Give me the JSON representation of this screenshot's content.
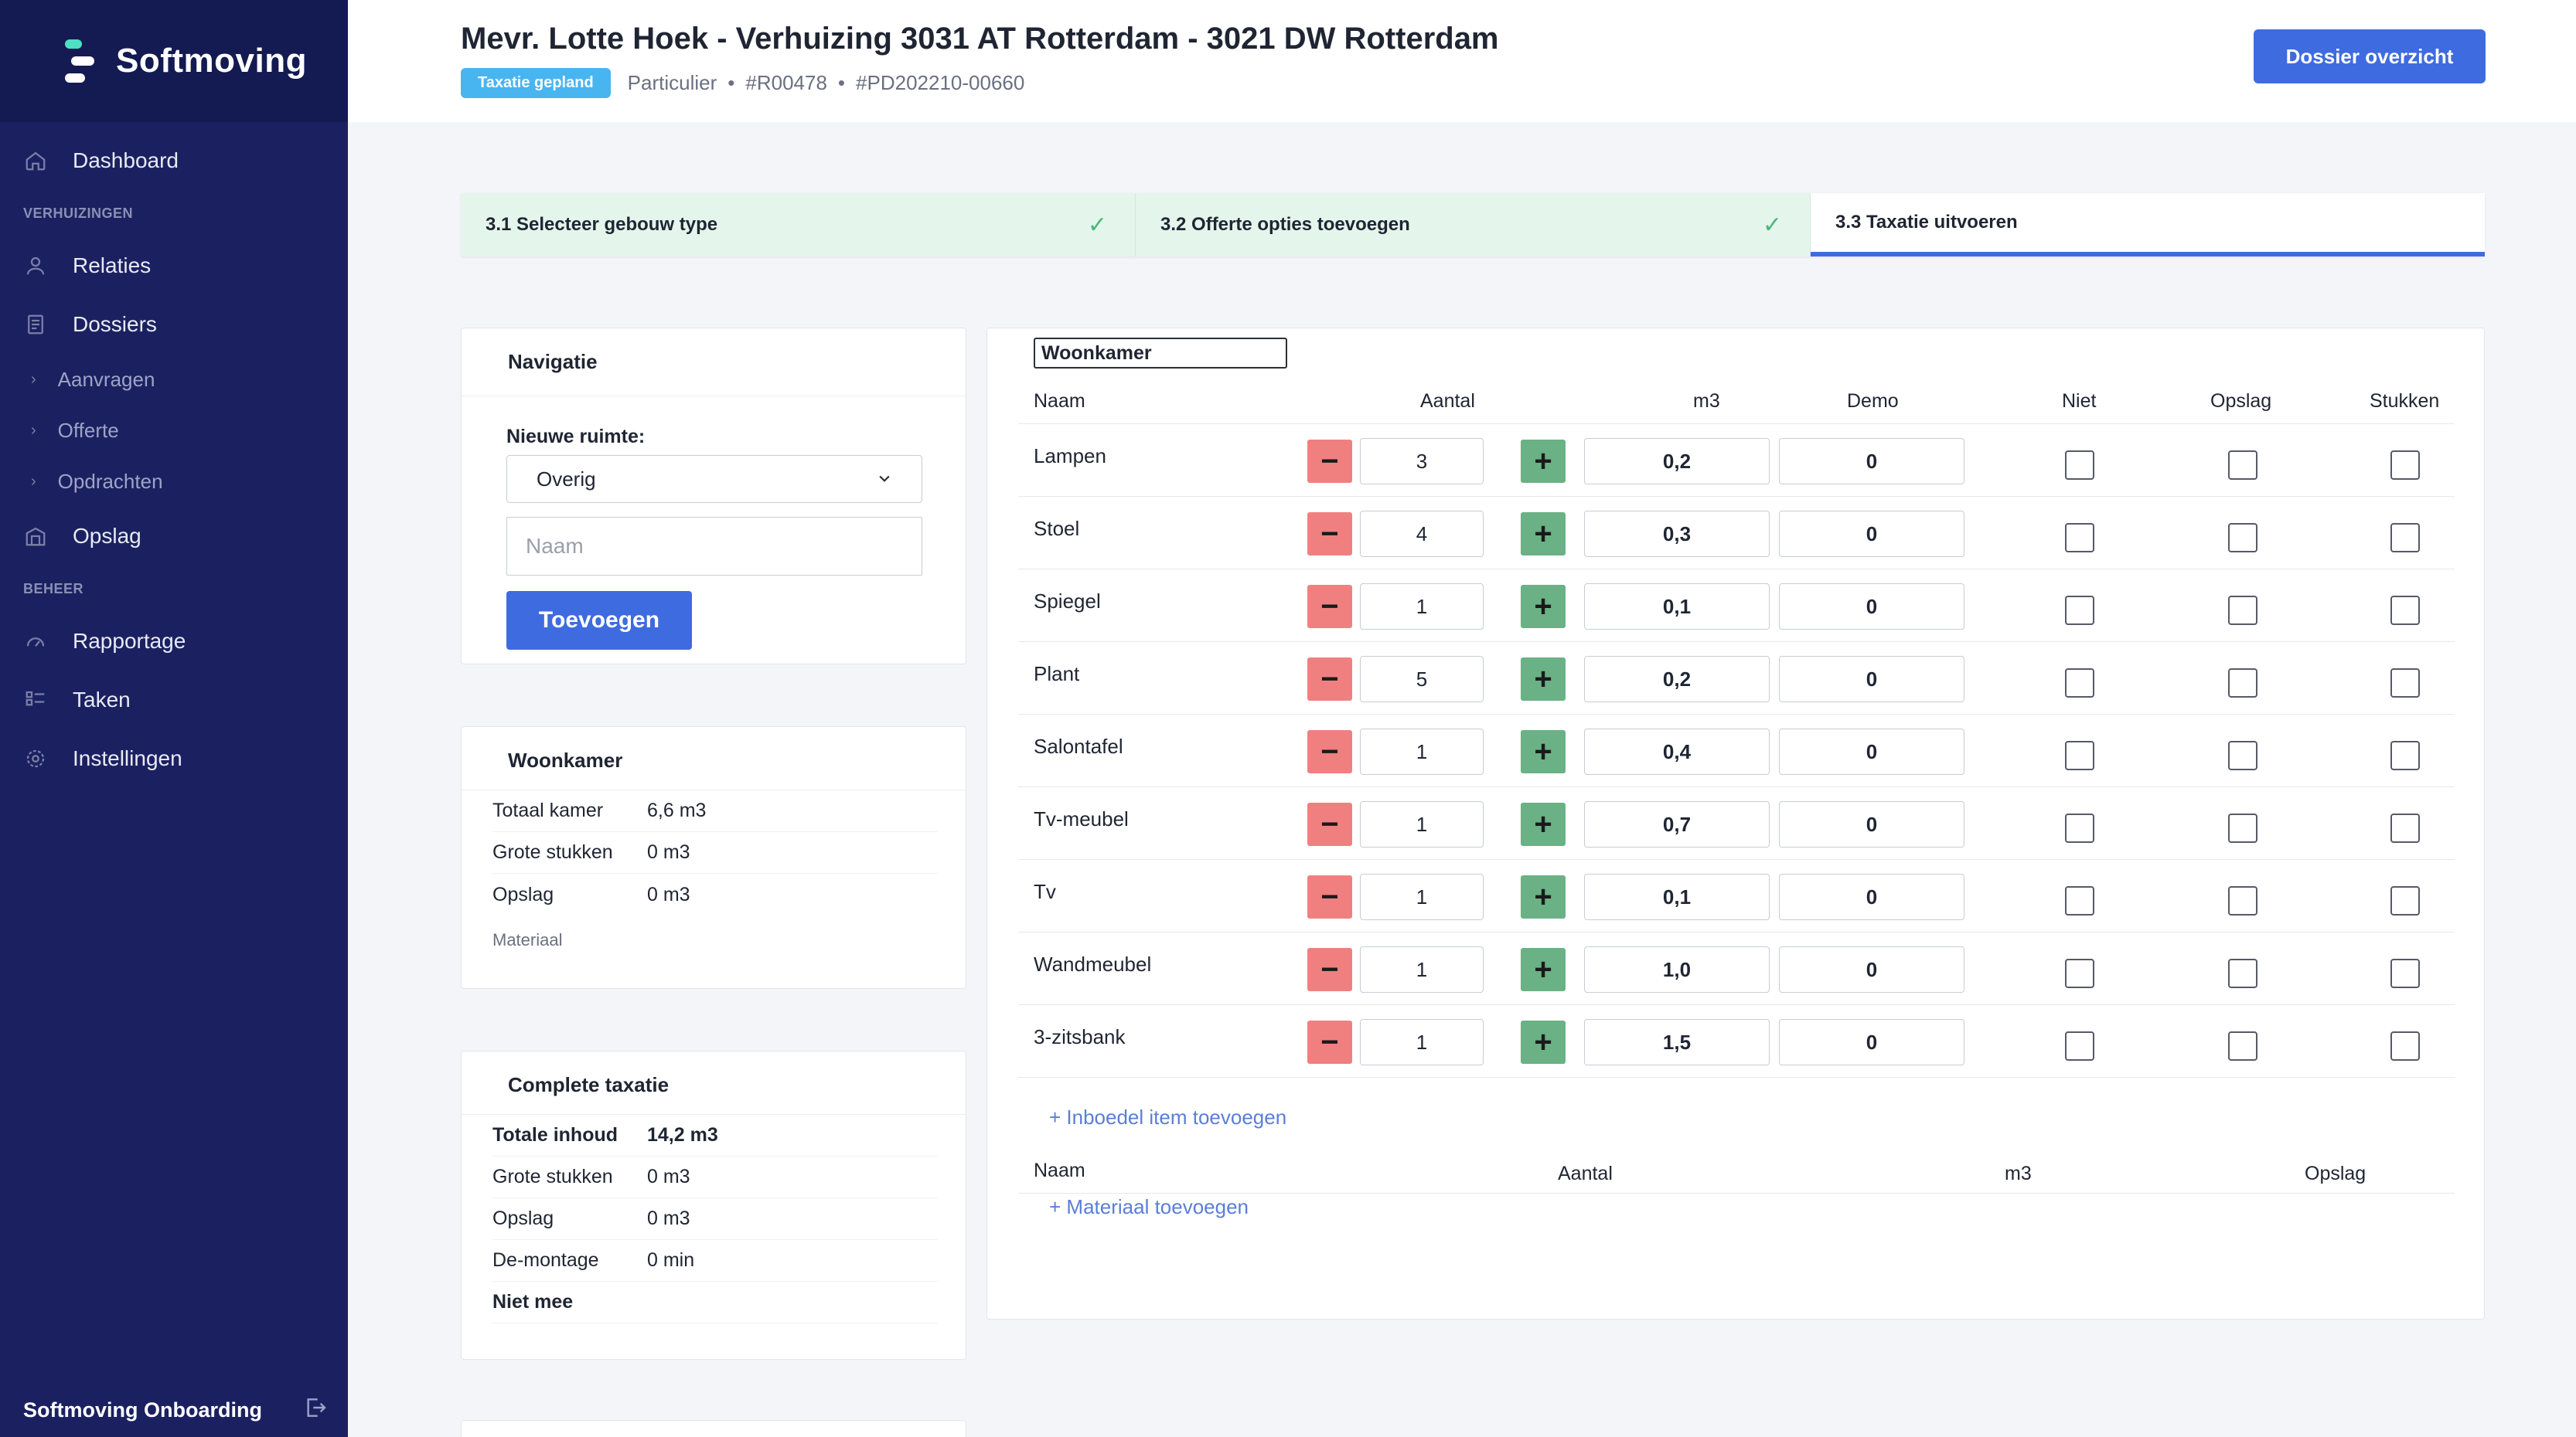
{
  "app": {
    "brand": "Softmoving",
    "footer_label": "Softmoving Onboarding"
  },
  "sidebar": {
    "dashboard": "Dashboard",
    "section_verhuizingen": "VERHUIZINGEN",
    "relaties": "Relaties",
    "dossiers": "Dossiers",
    "aanvragen": "Aanvragen",
    "offerte": "Offerte",
    "opdrachten": "Opdrachten",
    "opslag": "Opslag",
    "section_beheer": "BEHEER",
    "rapportage": "Rapportage",
    "taken": "Taken",
    "instellingen": "Instellingen"
  },
  "header": {
    "title": "Mevr. Lotte Hoek - Verhuizing 3031 AT Rotterdam - 3021 DW Rotterdam",
    "status_badge": "Taxatie gepland",
    "client_type": "Particulier",
    "ref1": "#R00478",
    "ref2": "#PD202210-00660",
    "overview_button": "Dossier overzicht"
  },
  "steps": [
    {
      "label": "3.1 Selecteer gebouw type",
      "done": true
    },
    {
      "label": "3.2 Offerte opties toevoegen",
      "done": true
    },
    {
      "label": "3.3 Taxatie uitvoeren",
      "done": false
    }
  ],
  "navigatie": {
    "title": "Navigatie",
    "new_room_label": "Nieuwe ruimte:",
    "selected_room_type": "Overig",
    "name_placeholder": "Naam",
    "add_button": "Toevoegen"
  },
  "room_summary": {
    "title": "Woonkamer",
    "rows": [
      {
        "label": "Totaal kamer",
        "value": "6,6 m3"
      },
      {
        "label": "Grote stukken",
        "value": "0 m3"
      },
      {
        "label": "Opslag",
        "value": "0 m3"
      }
    ],
    "materiaal_label": "Materiaal"
  },
  "complete_taxatie": {
    "title": "Complete taxatie",
    "rows": [
      {
        "label": "Totale inhoud",
        "value": "14,2 m3"
      },
      {
        "label": "Grote stukken",
        "value": "0 m3"
      },
      {
        "label": "Opslag",
        "value": "0 m3"
      },
      {
        "label": "De-montage",
        "value": "0 min"
      },
      {
        "label": "Niet mee",
        "value": ""
      }
    ]
  },
  "main": {
    "room_name": "Woonkamer",
    "columns": {
      "naam": "Naam",
      "aantal": "Aantal",
      "m3": "m3",
      "demo": "Demo",
      "niet": "Niet",
      "opslag": "Opslag",
      "stukken": "Stukken"
    },
    "items": [
      {
        "name": "Lampen",
        "qty": "3",
        "m3": "0,2",
        "demo": "0"
      },
      {
        "name": "Stoel",
        "qty": "4",
        "m3": "0,3",
        "demo": "0"
      },
      {
        "name": "Spiegel",
        "qty": "1",
        "m3": "0,1",
        "demo": "0"
      },
      {
        "name": "Plant",
        "qty": "5",
        "m3": "0,2",
        "demo": "0"
      },
      {
        "name": "Salontafel",
        "qty": "1",
        "m3": "0,4",
        "demo": "0"
      },
      {
        "name": "Tv-meubel",
        "qty": "1",
        "m3": "0,7",
        "demo": "0"
      },
      {
        "name": "Tv",
        "qty": "1",
        "m3": "0,1",
        "demo": "0"
      },
      {
        "name": "Wandmeubel",
        "qty": "1",
        "m3": "1,0",
        "demo": "0"
      },
      {
        "name": "3-zitsbank",
        "qty": "1",
        "m3": "1,5",
        "demo": "0"
      }
    ],
    "add_inboedel_link": "+ Inboedel item toevoegen",
    "material_columns": {
      "naam": "Naam",
      "aantal": "Aantal",
      "m3": "m3",
      "opslag": "Opslag"
    },
    "add_materiaal_link": "+ Materiaal toevoegen"
  },
  "colors": {
    "sidebar_bg": "#1b2160",
    "accent": "#3f6be0",
    "badge": "#48b5f0",
    "step_done_bg": "#e4f5ec",
    "minus_btn": "#f08080",
    "plus_btn": "#6ab185"
  }
}
